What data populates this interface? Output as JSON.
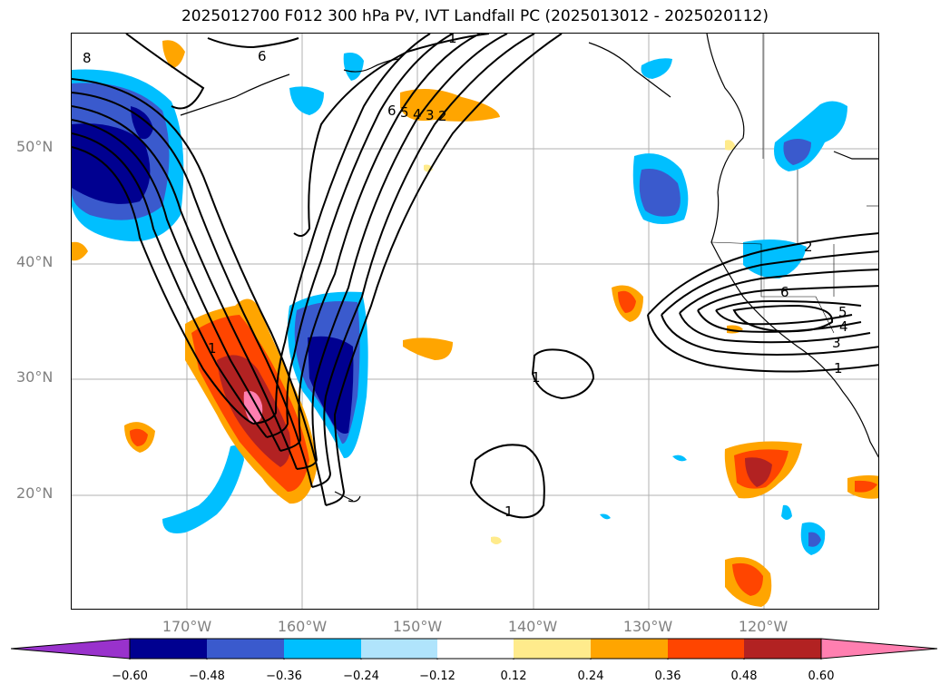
{
  "title": "2025012700 F012 300 hPa PV, IVT Landfall PC (2025013012 - 2025020112)",
  "lat_labels": [
    "50°N",
    "40°N",
    "30°N",
    "20°N"
  ],
  "lon_labels": [
    "170°W",
    "160°W",
    "150°W",
    "140°W",
    "130°W",
    "120°W"
  ],
  "colorbar": {
    "ticks": [
      "−0.60",
      "−0.48",
      "−0.36",
      "−0.24",
      "−0.12",
      "0.12",
      "0.24",
      "0.36",
      "0.48",
      "0.60"
    ],
    "colors": [
      "#9932cc",
      "#000090",
      "#3a5acd",
      "#00bfff",
      "#b0e4fc",
      "#ffffff",
      "#ffeb8c",
      "#ffa500",
      "#ff4500",
      "#b22222",
      "#ff7fb0"
    ]
  },
  "contour_labels": [
    "6",
    "1",
    "6",
    "5",
    "4",
    "3",
    "2",
    "1",
    "1",
    "1",
    "2",
    "6",
    "5",
    "4",
    "3",
    "1",
    "8"
  ],
  "map_extent": {
    "lon": [
      -180,
      -110
    ],
    "lat": [
      10,
      60
    ]
  }
}
